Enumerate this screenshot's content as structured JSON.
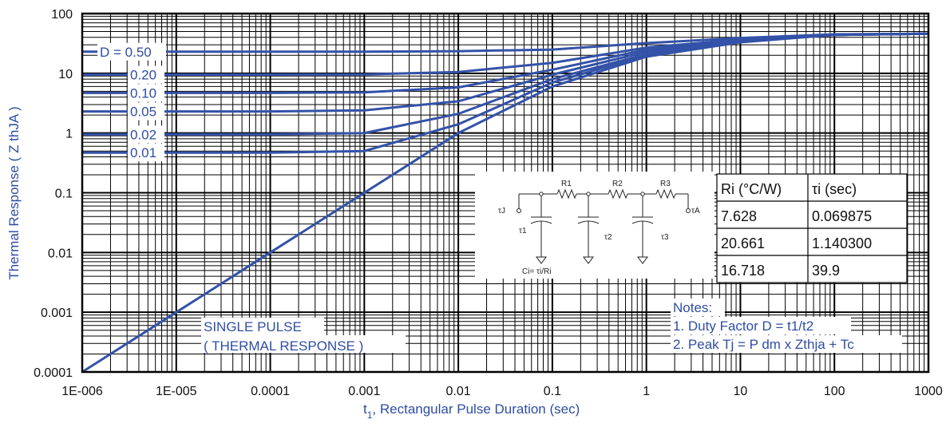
{
  "chart_data": {
    "type": "line",
    "xscale": "log",
    "yscale": "log",
    "xlim": [
      1e-06,
      1000
    ],
    "ylim": [
      0.0001,
      100
    ],
    "grid": true,
    "xlabel": "t",
    "xlabel_sub": "1",
    "xlabel_rest": ", Rectangular Pulse Duration (sec)",
    "ylabel": "Thermal Response ( Z thJA )",
    "x_tick_labels": [
      "1E-006",
      "1E-005",
      "0.0001",
      "0.001",
      "0.01",
      "0.1",
      "1",
      "10",
      "100",
      "1000"
    ],
    "y_tick_labels": [
      "0.0001",
      "0.001",
      "0.01",
      "0.1",
      "1",
      "10",
      "100"
    ],
    "x": [
      1e-06,
      1e-05,
      0.0001,
      0.001,
      0.01,
      0.1,
      1,
      10,
      100,
      1000
    ],
    "series": [
      {
        "name": "D = 0.50",
        "values": [
          23,
          23,
          23,
          23,
          23.5,
          25,
          32,
          39,
          45,
          46
        ]
      },
      {
        "name": "0.20",
        "values": [
          9.5,
          9.5,
          9.5,
          9.6,
          10.5,
          15,
          27,
          37,
          44.5,
          46
        ]
      },
      {
        "name": "0.10",
        "values": [
          4.7,
          4.7,
          4.7,
          4.8,
          5.8,
          11.5,
          25,
          36,
          44,
          46
        ]
      },
      {
        "name": "0.05",
        "values": [
          2.3,
          2.3,
          2.3,
          2.4,
          3.4,
          9.5,
          23,
          35,
          44,
          46
        ]
      },
      {
        "name": "0.02",
        "values": [
          0.95,
          0.95,
          0.95,
          1.0,
          2.1,
          8.0,
          21,
          34,
          44,
          46
        ]
      },
      {
        "name": "0.01",
        "values": [
          0.47,
          0.47,
          0.47,
          0.5,
          1.4,
          7.0,
          20,
          34,
          44,
          46
        ]
      },
      {
        "name": "SINGLE PULSE",
        "values": [
          0.0001,
          0.001,
          0.01,
          0.1,
          1.0,
          6.0,
          19,
          33,
          44,
          46
        ]
      }
    ],
    "annotations": {
      "single_pulse_1": "SINGLE PULSE",
      "single_pulse_2": "( THERMAL RESPONSE )",
      "notes_title": "Notes:",
      "note_1": "1. Duty Factor D = t1/t2",
      "note_2": "2. Peak Tj = P dm x Zthja + Tc"
    },
    "rc_network": {
      "tau_j": "τJ",
      "tau_a": "τA",
      "tau_1": "τ1",
      "tau_2": "τ2",
      "tau_3": "τ3",
      "r1": "R1",
      "r2": "R2",
      "r3": "R3",
      "ci_formula": "Ci= τi/Ri"
    },
    "table": {
      "headers": [
        "Ri (°C/W)",
        "τi (sec)"
      ],
      "rows": [
        [
          "7.628",
          "0.069875"
        ],
        [
          "20.661",
          "1.140300"
        ],
        [
          "16.718",
          "39.9"
        ]
      ]
    }
  },
  "colors": {
    "curve": "#3352a8",
    "grid": "#000000",
    "label": "#2f4da3"
  }
}
